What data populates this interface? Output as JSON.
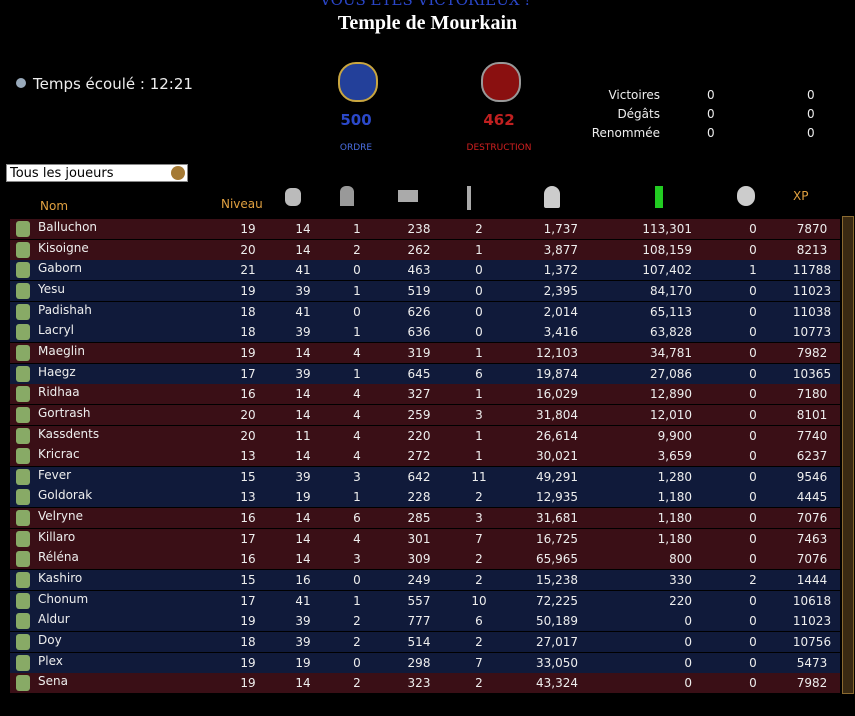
{
  "banner": "VOUS ÊTES VICTORIEUX !",
  "title": "Temple de Mourkain",
  "timer": "Temps écoulé : 12:21",
  "order": {
    "score": "500",
    "label": "ORDRE"
  },
  "destruction": {
    "score": "462",
    "label": "DESTRUCTION"
  },
  "stats": [
    [
      "Victoires",
      "0",
      "0"
    ],
    [
      "Dégâts",
      "0",
      "0"
    ],
    [
      "Renommée",
      "0",
      "0"
    ]
  ],
  "filter": "Tous les joueurs",
  "table": {
    "headers": {
      "name": "Nom",
      "level": "Niveau",
      "xp": "XP"
    },
    "rows": [
      [
        "Balluchon",
        "19",
        "14",
        "1",
        "238",
        "2",
        "1,737",
        "113,301",
        "0",
        "7870"
      ],
      [
        "Kisoigne",
        "20",
        "14",
        "2",
        "262",
        "1",
        "3,877",
        "108,159",
        "0",
        "8213"
      ],
      [
        "Gaborn",
        "21",
        "41",
        "0",
        "463",
        "0",
        "1,372",
        "107,402",
        "1",
        "11788"
      ],
      [
        "Yesu",
        "19",
        "39",
        "1",
        "519",
        "0",
        "2,395",
        "84,170",
        "0",
        "11023"
      ],
      [
        "Padishah",
        "18",
        "41",
        "0",
        "626",
        "0",
        "2,014",
        "65,113",
        "0",
        "11038"
      ],
      [
        "Lacryl",
        "18",
        "39",
        "1",
        "636",
        "0",
        "3,416",
        "63,828",
        "0",
        "10773"
      ],
      [
        "Maeglin",
        "19",
        "14",
        "4",
        "319",
        "1",
        "12,103",
        "34,781",
        "0",
        "7982"
      ],
      [
        "Haegz",
        "17",
        "39",
        "1",
        "645",
        "6",
        "19,874",
        "27,086",
        "0",
        "10365"
      ],
      [
        "Ridhaa",
        "16",
        "14",
        "4",
        "327",
        "1",
        "16,029",
        "12,890",
        "0",
        "7180"
      ],
      [
        "Gortrash",
        "20",
        "14",
        "4",
        "259",
        "3",
        "31,804",
        "12,010",
        "0",
        "8101"
      ],
      [
        "Kassdents",
        "20",
        "11",
        "4",
        "220",
        "1",
        "26,614",
        "9,900",
        "0",
        "7740"
      ],
      [
        "Kricrac",
        "13",
        "14",
        "4",
        "272",
        "1",
        "30,021",
        "3,659",
        "0",
        "6237"
      ],
      [
        "Fever",
        "15",
        "39",
        "3",
        "642",
        "11",
        "49,291",
        "1,280",
        "0",
        "9546"
      ],
      [
        "Goldorak",
        "13",
        "19",
        "1",
        "228",
        "2",
        "12,935",
        "1,180",
        "0",
        "4445"
      ],
      [
        "Velryne",
        "16",
        "14",
        "6",
        "285",
        "3",
        "31,681",
        "1,180",
        "0",
        "7076"
      ],
      [
        "Killaro",
        "17",
        "14",
        "4",
        "301",
        "7",
        "16,725",
        "1,180",
        "0",
        "7463"
      ],
      [
        "Réléna",
        "16",
        "14",
        "3",
        "309",
        "2",
        "65,965",
        "800",
        "0",
        "7076"
      ],
      [
        "Kashiro",
        "15",
        "16",
        "0",
        "249",
        "2",
        "15,238",
        "330",
        "2",
        "1444"
      ],
      [
        "Chonum",
        "17",
        "41",
        "1",
        "557",
        "10",
        "72,225",
        "220",
        "0",
        "10618"
      ],
      [
        "Aldur",
        "19",
        "39",
        "2",
        "777",
        "6",
        "50,189",
        "0",
        "0",
        "11023"
      ],
      [
        "Doy",
        "18",
        "39",
        "2",
        "514",
        "2",
        "27,017",
        "0",
        "0",
        "10756"
      ],
      [
        "Plex",
        "19",
        "19",
        "0",
        "298",
        "7",
        "33,050",
        "0",
        "0",
        "5473"
      ],
      [
        "Sena",
        "19",
        "14",
        "2",
        "323",
        "2",
        "43,324",
        "0",
        "0",
        "7982"
      ]
    ],
    "row_colors": [
      "#3a0f16",
      "#3a0f16",
      "#101a3a",
      "#101a3a",
      "#101a3a",
      "#101a3a",
      "#3a0f16",
      "#101a3a",
      "#3a0f16",
      "#3a0f16",
      "#3a0f16",
      "#3a0f16",
      "#101a3a",
      "#101a3a",
      "#3a0f16",
      "#3a0f16",
      "#3a0f16",
      "#101a3a",
      "#101a3a",
      "#101a3a",
      "#101a3a",
      "#101a3a",
      "#3a0f16"
    ]
  }
}
